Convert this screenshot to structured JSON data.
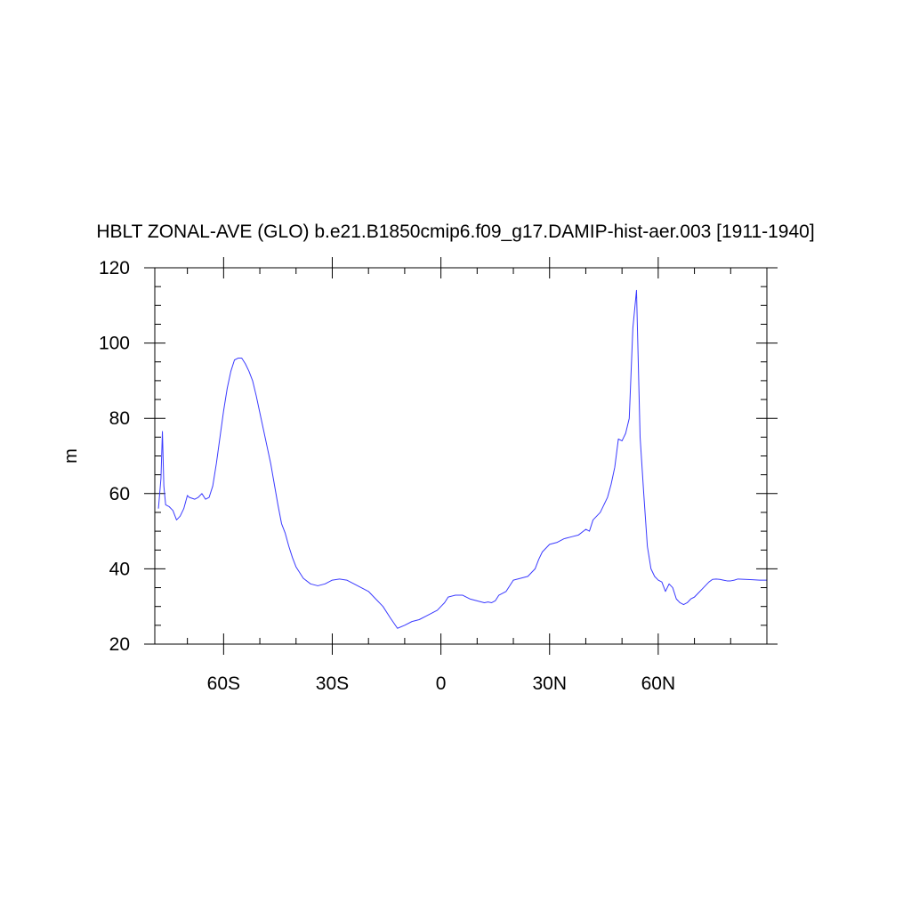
{
  "chart_data": {
    "type": "line",
    "title": "HBLT ZONAL-AVE (GLO) b.e21.B1850cmip6.f09_g17.DAMIP-hist-aer.003 [1911-1940]",
    "xlabel": "",
    "ylabel": "m",
    "xlim": [
      -79,
      90
    ],
    "ylim": [
      20,
      120
    ],
    "x_ticks": [
      {
        "value": -60,
        "label": "60S"
      },
      {
        "value": -30,
        "label": "30S"
      },
      {
        "value": 0,
        "label": "0"
      },
      {
        "value": 30,
        "label": "30N"
      },
      {
        "value": 60,
        "label": "60N"
      }
    ],
    "x_minor_step": 10,
    "y_ticks": [
      {
        "value": 20,
        "label": "20"
      },
      {
        "value": 40,
        "label": "40"
      },
      {
        "value": 60,
        "label": "60"
      },
      {
        "value": 80,
        "label": "80"
      },
      {
        "value": 100,
        "label": "100"
      },
      {
        "value": 120,
        "label": "120"
      }
    ],
    "y_minor_step": 5,
    "grid": false,
    "line_color": "#3a3aff",
    "series": [
      {
        "x": [
          -78,
          -77.3,
          -76.9,
          -76.5,
          -76,
          -75,
          -74,
          -73,
          -72,
          -71,
          -70,
          -69.5,
          -68,
          -67,
          -66,
          -65,
          -64,
          -63,
          -62,
          -61,
          -60,
          -59,
          -58,
          -57,
          -56,
          -55,
          -54,
          -53,
          -52,
          -51,
          -50,
          -49,
          -48,
          -47,
          -46,
          -45,
          -44,
          -43,
          -42,
          -41,
          -40,
          -38,
          -36,
          -34,
          -32,
          -30,
          -28,
          -26,
          -24,
          -22,
          -20,
          -18,
          -16,
          -14,
          -12,
          -10,
          -8,
          -6,
          -4,
          -2,
          -1,
          0,
          1,
          2,
          4,
          6,
          8,
          10,
          12,
          13,
          14,
          15,
          16,
          18,
          20,
          22,
          24,
          26,
          27,
          28,
          30,
          32,
          34,
          36,
          38,
          40,
          41,
          42,
          44,
          46,
          47,
          48,
          49,
          50,
          51,
          52,
          53,
          54,
          55,
          56,
          57,
          58,
          59,
          60,
          61,
          62,
          63,
          64,
          65,
          66,
          67,
          68,
          69,
          70,
          71,
          72,
          73,
          74,
          75,
          76,
          77,
          78,
          79,
          80,
          81,
          82,
          84,
          86,
          88,
          90
        ],
        "values": [
          56,
          64,
          76.5,
          62,
          57,
          56.5,
          55.5,
          53,
          54,
          56,
          59.5,
          59,
          58.5,
          59,
          60,
          58.5,
          59,
          62,
          68,
          75,
          82,
          88,
          92.5,
          95.5,
          96,
          96,
          94.5,
          92.5,
          90,
          86,
          81.5,
          77,
          72.5,
          68,
          62.5,
          57,
          52,
          49.5,
          46,
          43,
          40.5,
          37.5,
          36,
          35.5,
          36,
          37,
          37.3,
          37,
          36,
          35,
          34,
          32,
          30,
          27,
          24.2,
          25,
          26,
          26.5,
          27.5,
          28.5,
          29,
          30,
          31,
          32.5,
          33,
          33,
          32,
          31.5,
          31,
          31.2,
          31,
          31.5,
          33,
          34,
          37,
          37.5,
          38,
          40,
          42.5,
          44.5,
          46.5,
          47,
          48,
          48.5,
          49,
          50.5,
          50,
          53,
          55,
          59,
          62.5,
          67,
          74.5,
          74,
          76,
          80,
          104,
          114,
          75,
          60,
          46,
          40,
          38,
          37,
          36.5,
          34,
          36,
          35,
          32,
          31,
          30.5,
          31,
          32,
          32.5,
          33.5,
          34.5,
          35.5,
          36.5,
          37.2,
          37.3,
          37.2,
          37,
          36.8,
          36.8,
          37,
          37.3,
          37.2,
          37.1,
          37,
          37
        ]
      }
    ]
  }
}
